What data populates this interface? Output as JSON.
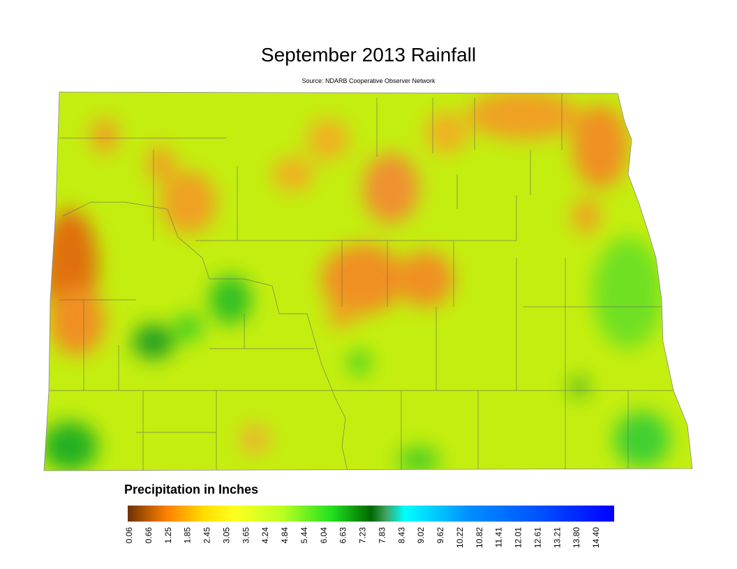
{
  "title": "September 2013 Rainfall",
  "subtitle": "Source: NDARB Cooperative Observer Network",
  "legend": {
    "title": "Precipitation in Inches",
    "ticks": [
      "0.06",
      "0.66",
      "1.25",
      "1.85",
      "2.45",
      "3.05",
      "3.65",
      "4.24",
      "4.84",
      "5.44",
      "6.04",
      "6.63",
      "7.23",
      "7.83",
      "8.43",
      "9.02",
      "9.62",
      "10.22",
      "10.82",
      "11.41",
      "12.01",
      "12.61",
      "13.21",
      "13.80",
      "14.40"
    ]
  }
}
